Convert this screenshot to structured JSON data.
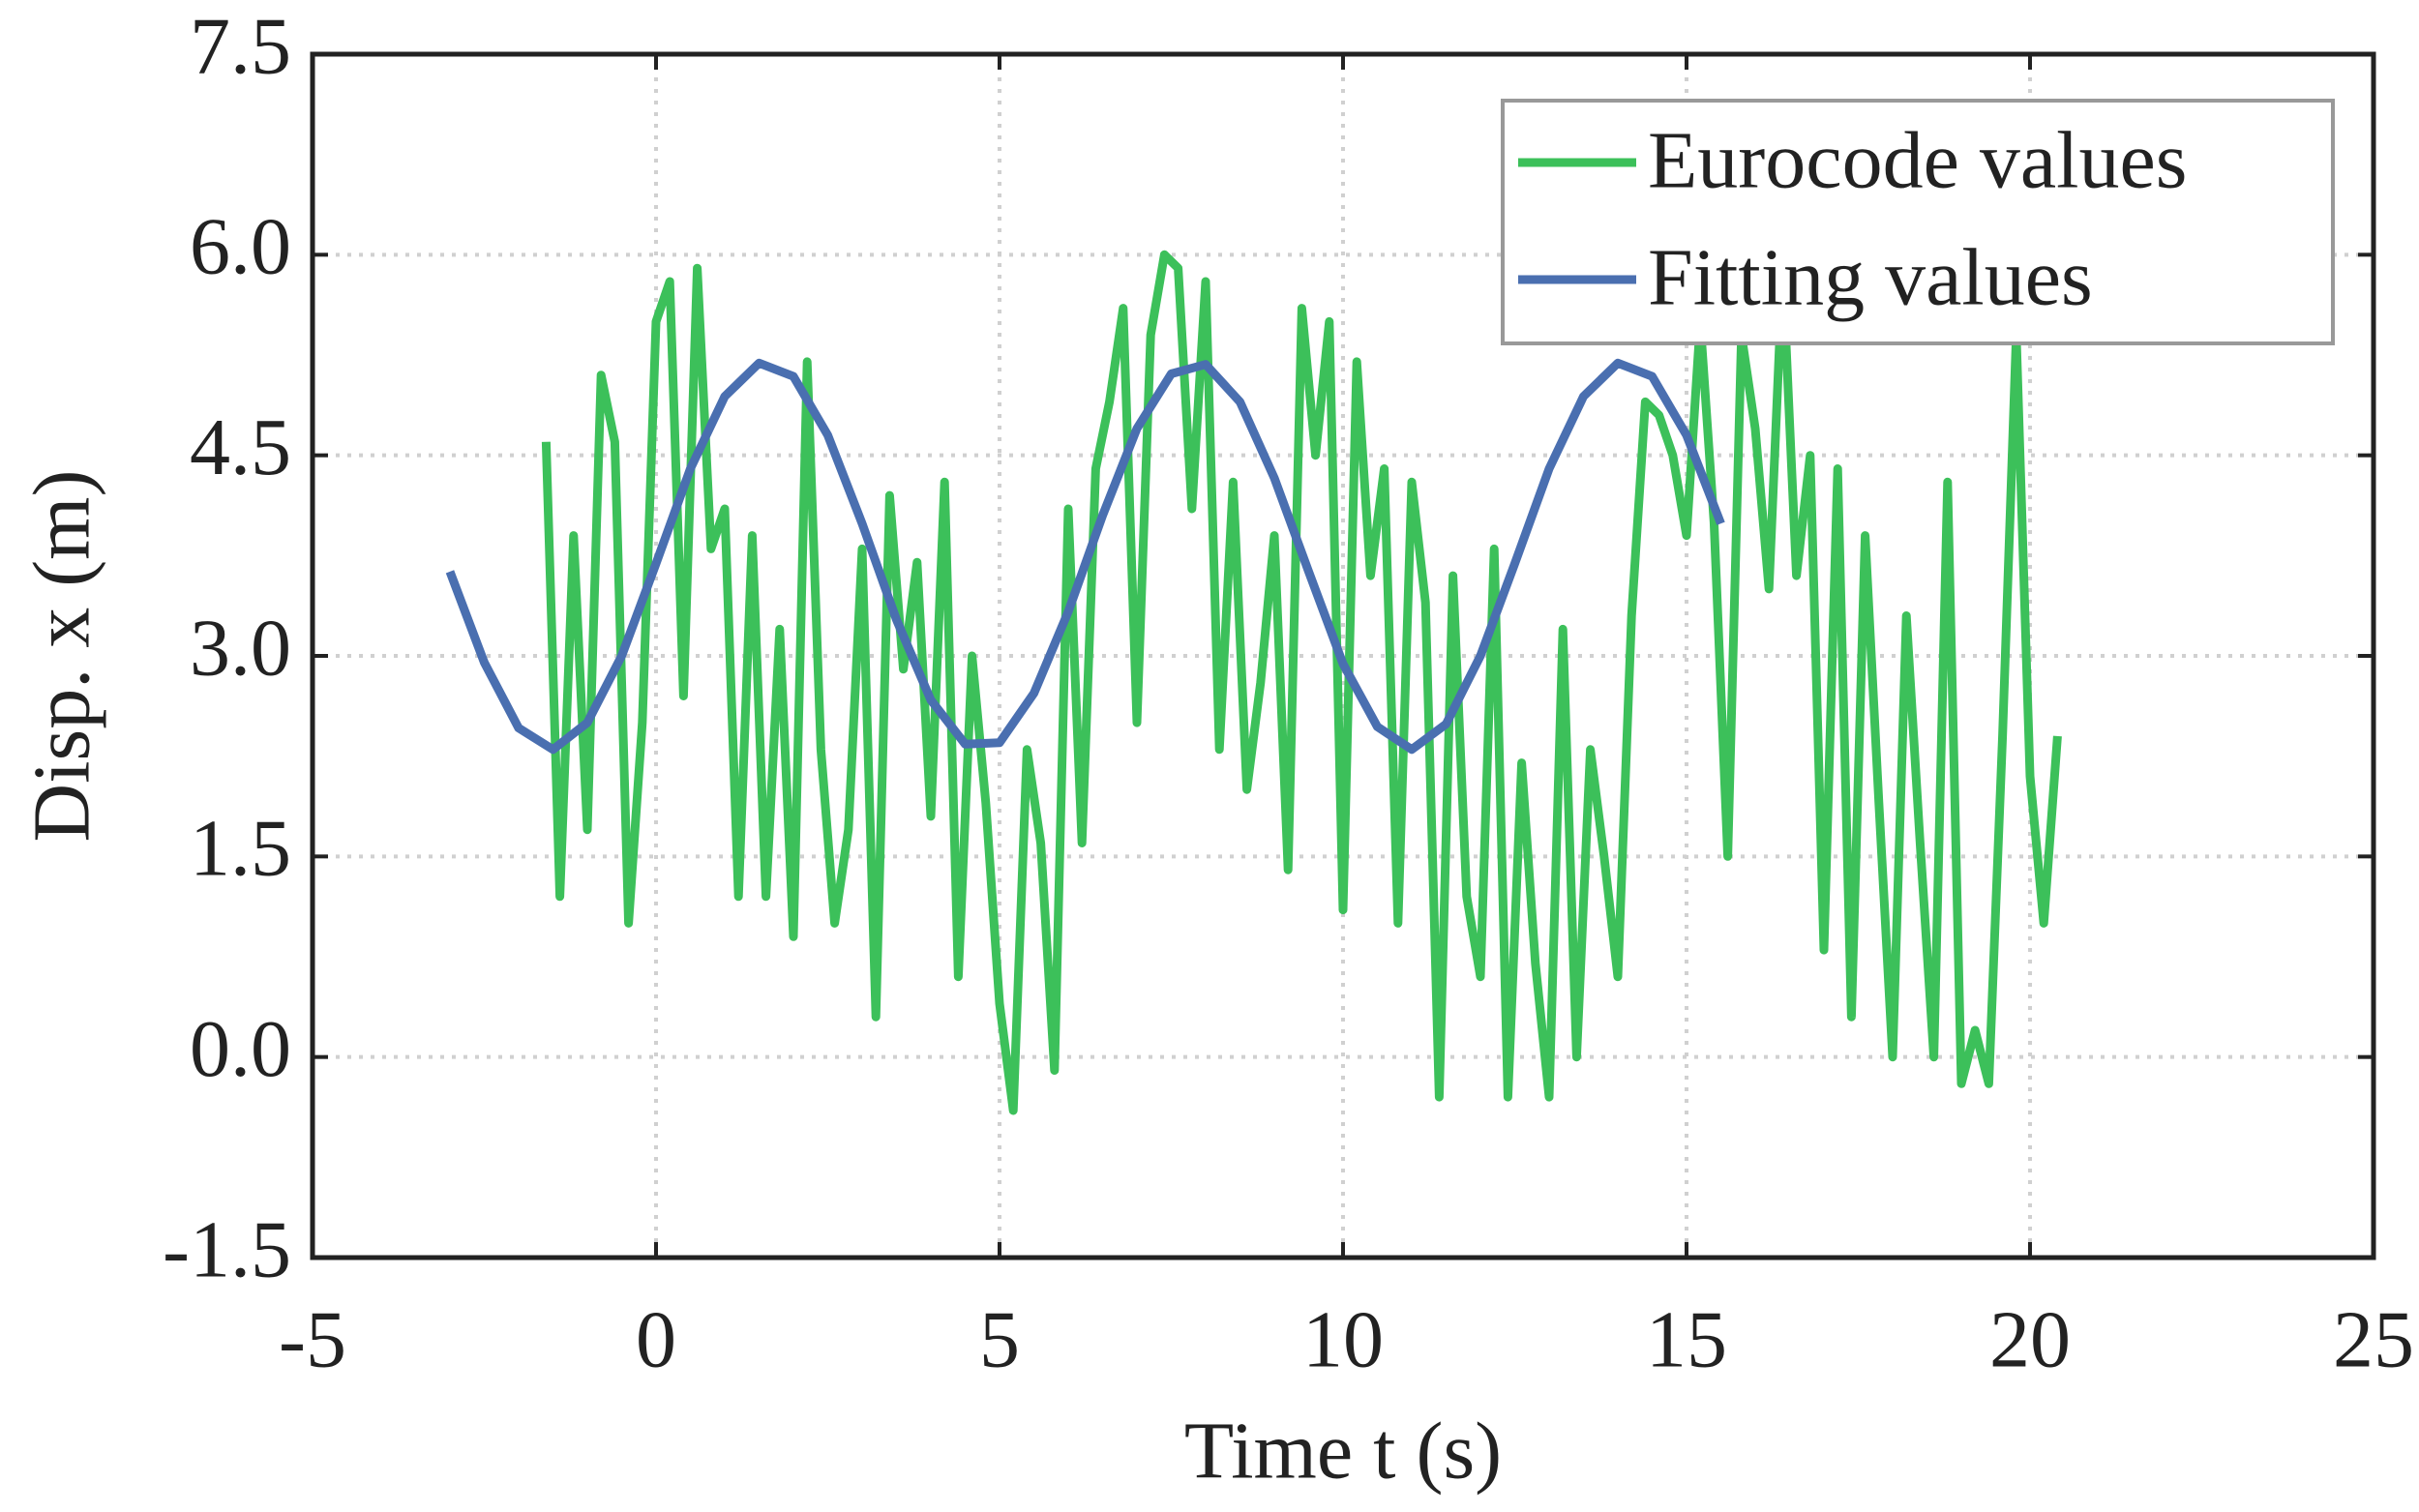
{
  "chart_data": {
    "type": "line",
    "x_label": "Time t (s)",
    "y_label": "Disp. x (m)",
    "xlim": [
      -5,
      25
    ],
    "xticks": [
      -5,
      0,
      5,
      10,
      15,
      20,
      25
    ],
    "ylim": [
      -1.5,
      7.5
    ],
    "yticks": [
      -1.5,
      {
        "value": 0,
        "label": "0.0"
      },
      {
        "value": 1.5,
        "label": "1.5"
      },
      {
        "value": 3,
        "label": "3.0"
      },
      {
        "value": 4.5,
        "label": "4.5"
      },
      {
        "value": 6,
        "label": "6.0"
      },
      {
        "value": 7.5,
        "label": "7.5"
      }
    ],
    "grid": true,
    "legend": "upper right",
    "series": [
      {
        "name": "Eurocode values",
        "color": "#3cc05a",
        "x": [
          -1.6,
          -1.4,
          -1.2,
          -1.0,
          -0.8,
          -0.6,
          -0.4,
          -0.2,
          0.0,
          0.2,
          0.4,
          0.6,
          0.8,
          1.0,
          1.2,
          1.4,
          1.6,
          1.8,
          2.0,
          2.2,
          2.4,
          2.6,
          2.8,
          3.0,
          3.2,
          3.4,
          3.6,
          3.8,
          4.0,
          4.2,
          4.4,
          4.6,
          4.8,
          5.0,
          5.2,
          5.4,
          5.6,
          5.8,
          6.0,
          6.2,
          6.4,
          6.6,
          6.8,
          7.0,
          7.2,
          7.4,
          7.6,
          7.8,
          8.0,
          8.2,
          8.4,
          8.6,
          8.8,
          9.0,
          9.2,
          9.4,
          9.6,
          9.8,
          10.0,
          10.2,
          10.4,
          10.6,
          10.8,
          11.0,
          11.2,
          11.4,
          11.6,
          11.8,
          12.0,
          12.2,
          12.4,
          12.6,
          12.8,
          13.0,
          13.2,
          13.4,
          13.6,
          13.8,
          14.0,
          14.2,
          14.4,
          14.6,
          14.8,
          15.0,
          15.2,
          15.4,
          15.6,
          15.8,
          16.0,
          16.2,
          16.4,
          16.6,
          16.8,
          17.0,
          17.2,
          17.4,
          17.6,
          17.8,
          18.0,
          18.2,
          18.4,
          18.6,
          18.8,
          19.0,
          19.2,
          19.4,
          19.6,
          19.8,
          20.0,
          20.2,
          20.4
        ],
        "values": [
          4.6,
          1.2,
          3.9,
          1.7,
          5.1,
          4.6,
          1.0,
          2.5,
          5.5,
          5.8,
          2.7,
          5.9,
          3.8,
          4.1,
          1.2,
          3.9,
          1.2,
          3.2,
          0.9,
          5.2,
          2.3,
          1.0,
          1.7,
          3.8,
          0.3,
          4.2,
          2.9,
          3.7,
          1.8,
          4.3,
          0.6,
          3.0,
          1.9,
          0.4,
          -0.4,
          2.3,
          1.6,
          -0.1,
          4.1,
          1.6,
          4.4,
          4.9,
          5.6,
          2.5,
          5.4,
          6.0,
          5.9,
          4.1,
          5.8,
          2.3,
          4.3,
          2.0,
          2.8,
          3.9,
          1.4,
          5.6,
          4.5,
          5.5,
          1.1,
          5.2,
          3.6,
          4.4,
          1.0,
          4.3,
          3.4,
          -0.3,
          3.6,
          1.2,
          0.6,
          3.8,
          -0.3,
          2.2,
          0.7,
          -0.3,
          3.2,
          0.0,
          2.3,
          1.5,
          0.6,
          3.3,
          4.9,
          4.8,
          4.5,
          3.9,
          5.5,
          4.0,
          1.5,
          5.4,
          4.7,
          3.5,
          5.9,
          3.6,
          4.5,
          0.8,
          4.4,
          0.3,
          3.9,
          1.9,
          0.0,
          3.3,
          1.6,
          0.0,
          4.3,
          -0.2,
          0.2,
          -0.2,
          2.4,
          5.4,
          2.1,
          1.0,
          2.4
        ]
      },
      {
        "name": "Fitting values",
        "color": "#4a6fb0",
        "x": [
          -3.0,
          -2.5,
          -2.0,
          -1.5,
          -1.0,
          -0.5,
          0.0,
          0.5,
          1.0,
          1.5,
          2.0,
          2.5,
          3.0,
          3.5,
          4.0,
          4.5,
          5.0,
          5.5,
          6.0,
          6.5,
          7.0,
          7.5,
          8.0,
          8.5,
          9.0,
          9.5,
          10.0,
          10.5,
          11.0,
          11.5,
          12.0,
          12.5,
          13.0,
          13.5,
          14.0,
          14.5,
          15.0,
          15.5
        ],
        "values": [
          3.63,
          2.95,
          2.46,
          2.3,
          2.5,
          3.0,
          3.69,
          4.4,
          4.94,
          5.19,
          5.09,
          4.65,
          3.99,
          3.27,
          2.67,
          2.34,
          2.35,
          2.72,
          3.33,
          4.05,
          4.7,
          5.11,
          5.18,
          4.9,
          4.33,
          3.63,
          2.94,
          2.47,
          2.3,
          2.49,
          3.0,
          3.69,
          4.4,
          4.94,
          5.19,
          5.09,
          4.65,
          3.99
        ]
      }
    ]
  }
}
